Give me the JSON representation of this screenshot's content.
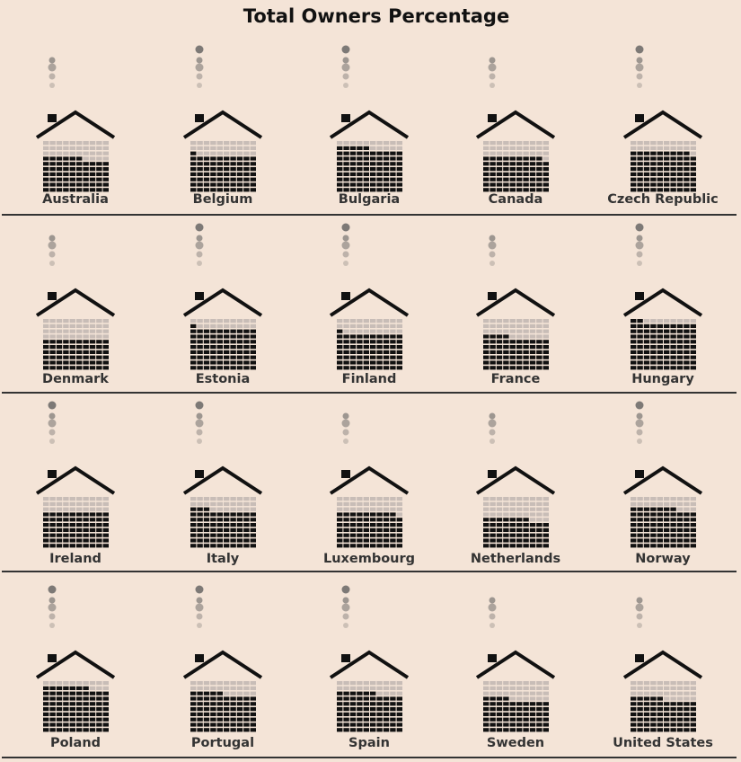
{
  "chart_data": {
    "type": "pictogram",
    "title": "Total Owners Percentage",
    "unit": "percent",
    "countries": [
      {
        "name": "Australia",
        "value": 66
      },
      {
        "name": "Belgium",
        "value": 71
      },
      {
        "name": "Bulgaria",
        "value": 85
      },
      {
        "name": "Canada",
        "value": 69
      },
      {
        "name": "Czech Republic",
        "value": 79
      },
      {
        "name": "Denmark",
        "value": 60
      },
      {
        "name": "Estonia",
        "value": 81
      },
      {
        "name": "Finland",
        "value": 71
      },
      {
        "name": "France",
        "value": 64
      },
      {
        "name": "Hungary",
        "value": 92
      },
      {
        "name": "Ireland",
        "value": 70
      },
      {
        "name": "Italy",
        "value": 73
      },
      {
        "name": "Luxembourg",
        "value": 69
      },
      {
        "name": "Netherlands",
        "value": 57
      },
      {
        "name": "Norway",
        "value": 77
      },
      {
        "name": "Poland",
        "value": 87
      },
      {
        "name": "Portugal",
        "value": 75
      },
      {
        "name": "Spain",
        "value": 76
      },
      {
        "name": "Sweden",
        "value": 64
      },
      {
        "name": "United States",
        "value": 65
      }
    ]
  }
}
